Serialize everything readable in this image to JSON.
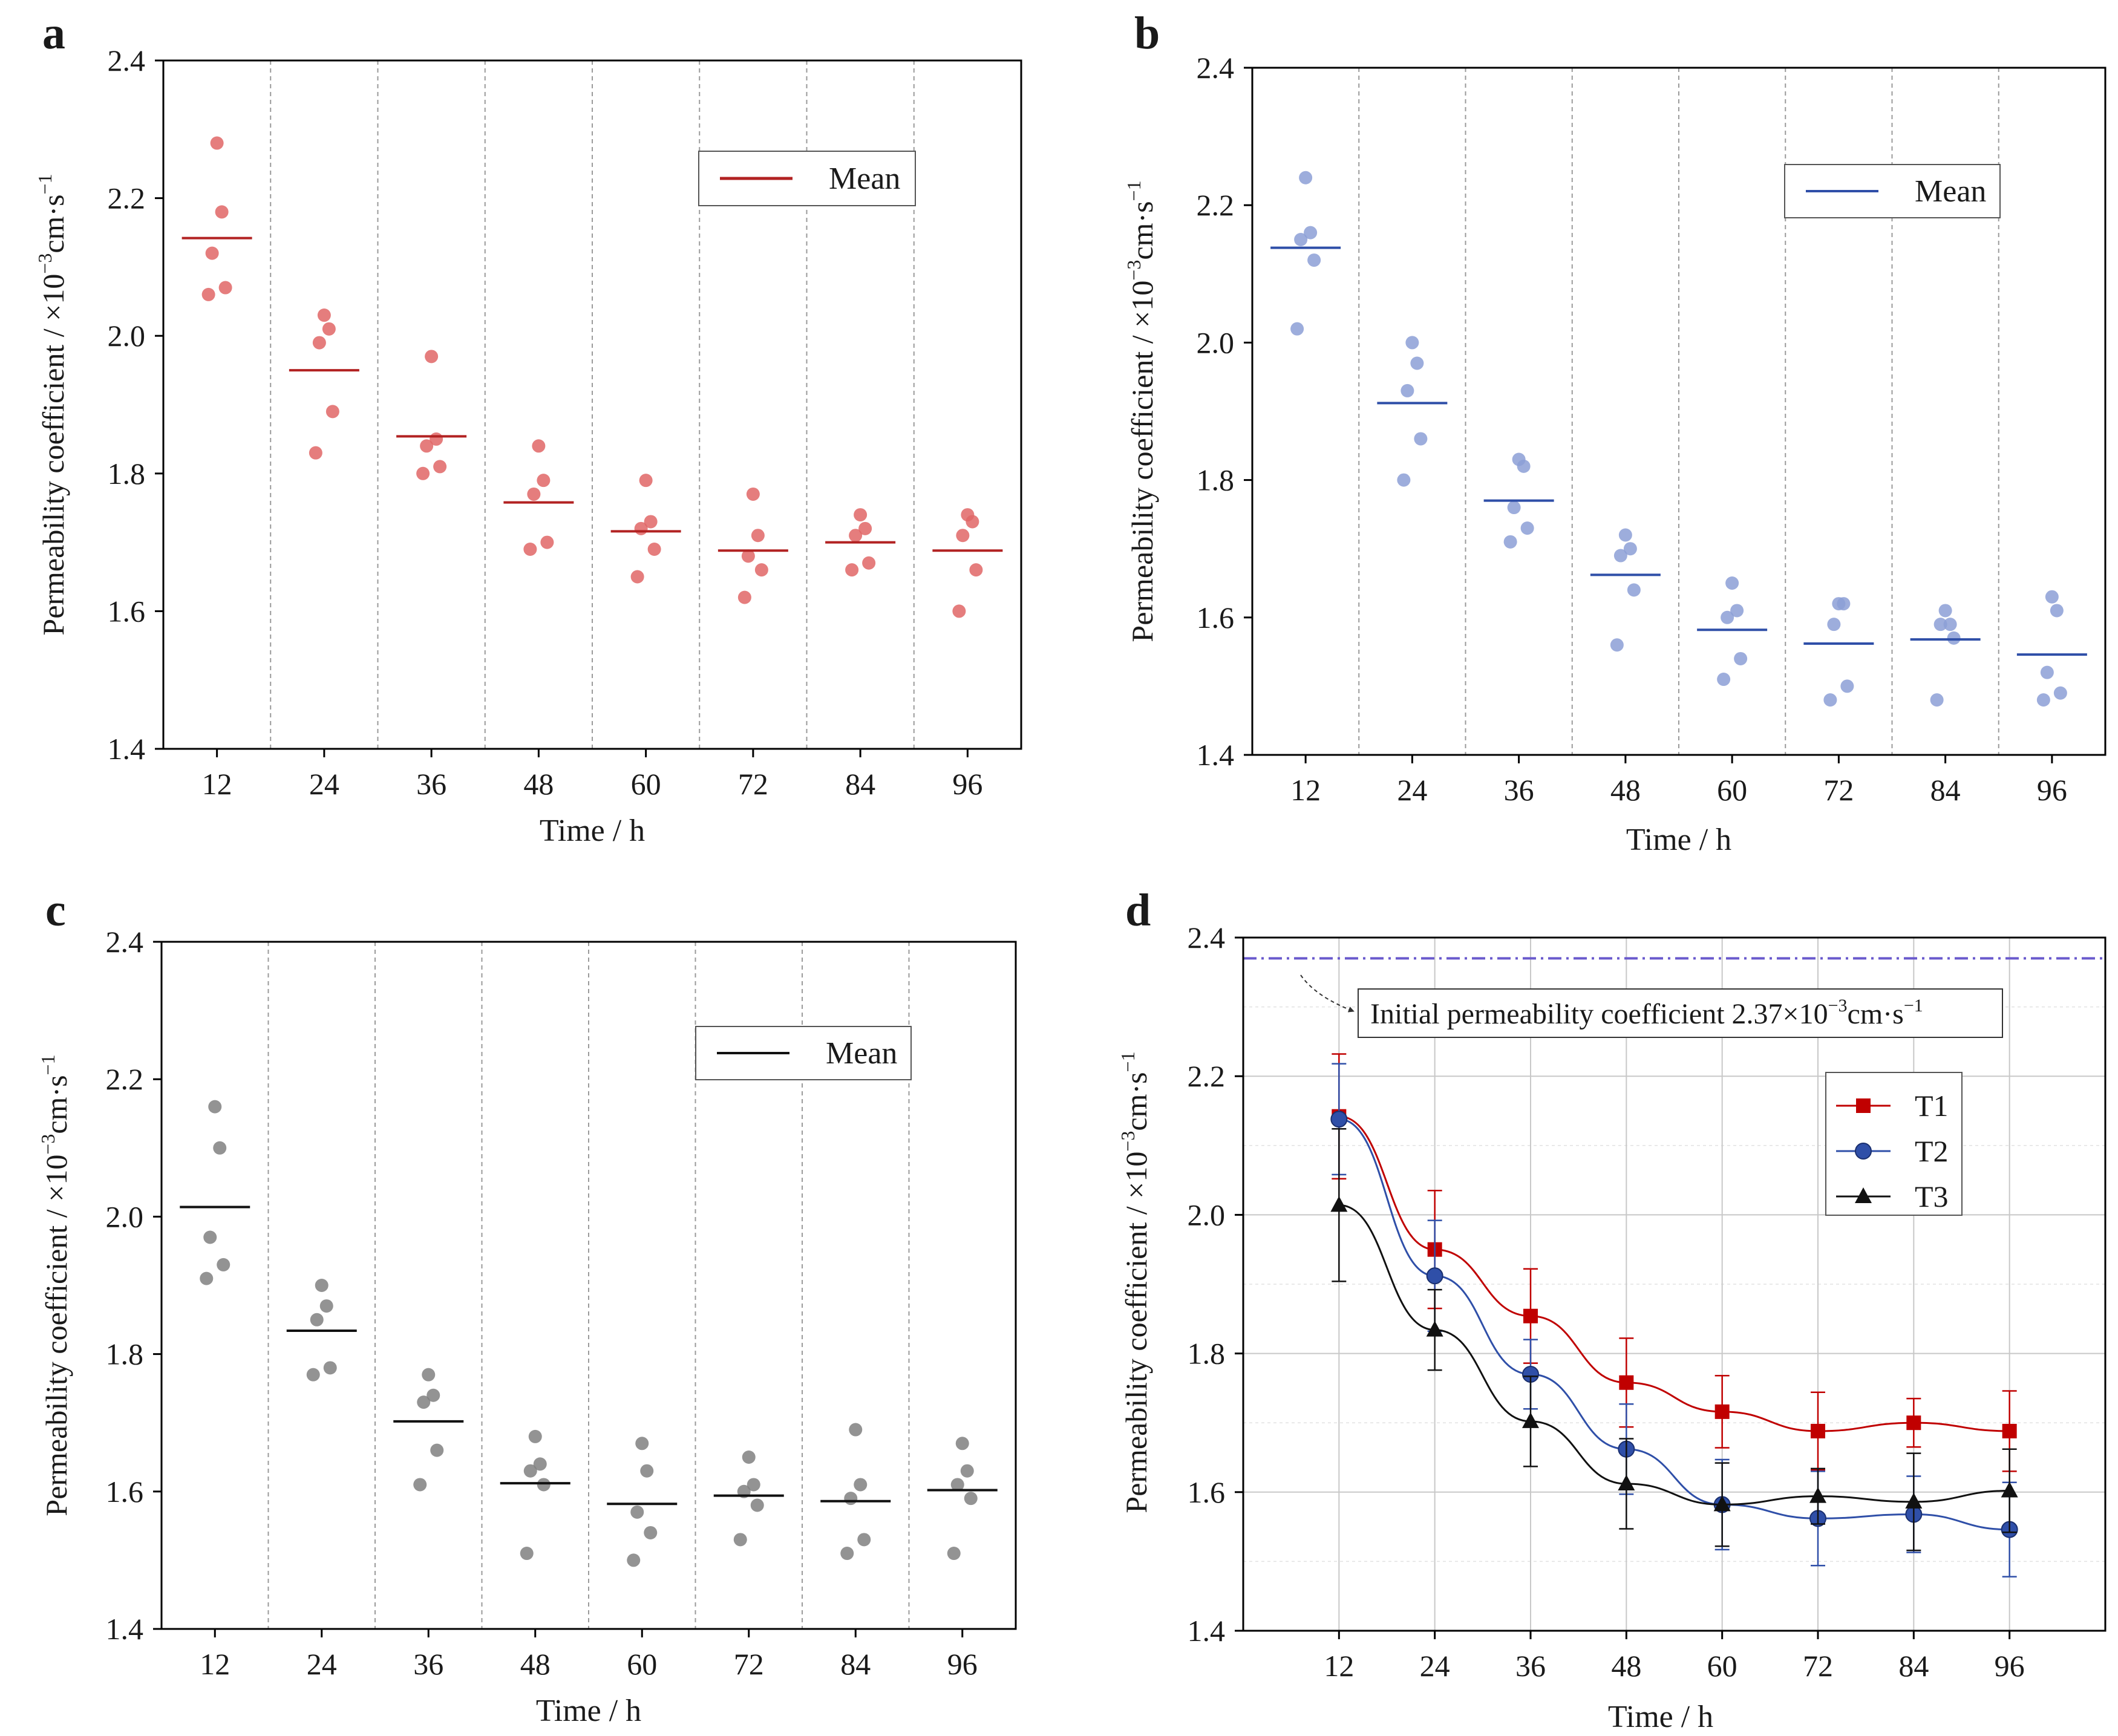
{
  "figure": {
    "panels": [
      {
        "letter": "a",
        "ylabel_main": "Permeability coefficient / ×10",
        "ylabel_exp": "−3",
        "ylabel_unit": "cm·s",
        "ylabel_unit_exp": "−1",
        "xlabel": "Time / h",
        "legend_label": "Mean"
      },
      {
        "letter": "b",
        "ylabel_main": "Permeability coefficient / ×10",
        "ylabel_exp": "−3",
        "ylabel_unit": "cm·s",
        "ylabel_unit_exp": "−1",
        "xlabel": "Time / h",
        "legend_label": "Mean"
      },
      {
        "letter": "c",
        "ylabel_main": "Permeability coefficient / ×10",
        "ylabel_exp": "−3",
        "ylabel_unit": "cm·s",
        "ylabel_unit_exp": "−1",
        "xlabel": "Time / h",
        "legend_label": "Mean"
      },
      {
        "letter": "d",
        "ylabel_main": "Permeability coefficient / ×10",
        "ylabel_exp": "−3",
        "ylabel_unit": "cm·s",
        "ylabel_unit_exp": "−1",
        "xlabel": "Time / h"
      }
    ],
    "annotation_d": {
      "text": "Initial permeability coefficient  2.37×10",
      "exp": "−3",
      "unit": "cm·s",
      "unit_exp": "−1"
    }
  },
  "chart_data": [
    {
      "type": "scatter",
      "panel": "a",
      "x": [
        "12",
        "24",
        "36",
        "48",
        "60",
        "72",
        "84",
        "96"
      ],
      "yticks": [
        "1.4",
        "1.6",
        "1.8",
        "2.0",
        "2.2",
        "2.4"
      ],
      "ylim": [
        1.4,
        2.4
      ],
      "color": "#e06666",
      "mean_color": "#b22222",
      "points": [
        [
          2.28,
          2.18,
          2.12,
          2.07,
          2.06
        ],
        [
          2.03,
          2.01,
          1.99,
          1.89,
          1.83
        ],
        [
          1.97,
          1.85,
          1.84,
          1.81,
          1.8
        ],
        [
          1.84,
          1.79,
          1.77,
          1.7,
          1.69
        ],
        [
          1.79,
          1.73,
          1.72,
          1.69,
          1.65
        ],
        [
          1.77,
          1.71,
          1.68,
          1.66,
          1.62
        ],
        [
          1.74,
          1.72,
          1.71,
          1.67,
          1.66
        ],
        [
          1.74,
          1.73,
          1.71,
          1.66,
          1.6
        ]
      ],
      "means": [
        2.142,
        1.95,
        1.854,
        1.758,
        1.716,
        1.688,
        1.7,
        1.688
      ]
    },
    {
      "type": "scatter",
      "panel": "b",
      "x": [
        "12",
        "24",
        "36",
        "48",
        "60",
        "72",
        "84",
        "96"
      ],
      "yticks": [
        "1.4",
        "1.6",
        "1.8",
        "2.0",
        "2.2",
        "2.4"
      ],
      "ylim": [
        1.4,
        2.4
      ],
      "color": "#8c9fd6",
      "mean_color": "#2f4fa8",
      "points": [
        [
          2.24,
          2.16,
          2.15,
          2.12,
          2.02
        ],
        [
          2.0,
          1.97,
          1.93,
          1.86,
          1.8
        ],
        [
          1.83,
          1.82,
          1.76,
          1.73,
          1.71
        ],
        [
          1.72,
          1.7,
          1.69,
          1.64,
          1.56
        ],
        [
          1.65,
          1.61,
          1.6,
          1.54,
          1.51
        ],
        [
          1.62,
          1.62,
          1.59,
          1.5,
          1.48
        ],
        [
          1.61,
          1.59,
          1.59,
          1.57,
          1.48
        ],
        [
          1.63,
          1.61,
          1.52,
          1.49,
          1.48
        ]
      ],
      "means": [
        2.138,
        1.912,
        1.77,
        1.662,
        1.582,
        1.562,
        1.568,
        1.546
      ]
    },
    {
      "type": "scatter",
      "panel": "c",
      "x": [
        "12",
        "24",
        "36",
        "48",
        "60",
        "72",
        "84",
        "96"
      ],
      "yticks": [
        "1.4",
        "1.6",
        "1.8",
        "2.0",
        "2.2",
        "2.4"
      ],
      "ylim": [
        1.4,
        2.4
      ],
      "color": "#808080",
      "mean_color": "#111111",
      "points": [
        [
          2.16,
          2.1,
          1.97,
          1.93,
          1.91
        ],
        [
          1.9,
          1.87,
          1.85,
          1.78,
          1.77
        ],
        [
          1.77,
          1.74,
          1.73,
          1.66,
          1.61
        ],
        [
          1.68,
          1.64,
          1.63,
          1.61,
          1.51
        ],
        [
          1.67,
          1.63,
          1.57,
          1.54,
          1.5
        ],
        [
          1.65,
          1.61,
          1.6,
          1.58,
          1.53
        ],
        [
          1.69,
          1.61,
          1.59,
          1.53,
          1.51
        ],
        [
          1.67,
          1.63,
          1.61,
          1.59,
          1.51
        ]
      ],
      "means": [
        2.014,
        1.834,
        1.702,
        1.612,
        1.582,
        1.594,
        1.586,
        1.602
      ]
    },
    {
      "type": "line",
      "panel": "d",
      "x": [
        "12",
        "24",
        "36",
        "48",
        "60",
        "72",
        "84",
        "96"
      ],
      "yticks": [
        "1.4",
        "1.6",
        "1.8",
        "2.0",
        "2.2",
        "2.4"
      ],
      "ylim": [
        1.4,
        2.4
      ],
      "reference_line": 2.37,
      "reference_color": "#6a5acd",
      "series": [
        {
          "name": "T1",
          "color": "#c00000",
          "marker": "square",
          "values": [
            2.142,
            1.95,
            1.854,
            1.758,
            1.716,
            1.688,
            1.7,
            1.688
          ],
          "errors": [
            0.09,
            0.085,
            0.068,
            0.064,
            0.052,
            0.056,
            0.035,
            0.058
          ]
        },
        {
          "name": "T2",
          "color": "#2f4fa8",
          "marker": "circle",
          "values": [
            2.138,
            1.912,
            1.77,
            1.662,
            1.582,
            1.562,
            1.568,
            1.546
          ],
          "errors": [
            0.08,
            0.08,
            0.05,
            0.065,
            0.065,
            0.068,
            0.055,
            0.068
          ]
        },
        {
          "name": "T3",
          "color": "#111111",
          "marker": "triangle",
          "values": [
            2.014,
            1.834,
            1.702,
            1.612,
            1.582,
            1.594,
            1.586,
            1.602
          ],
          "errors": [
            0.11,
            0.058,
            0.065,
            0.065,
            0.06,
            0.04,
            0.07,
            0.06
          ]
        }
      ]
    }
  ]
}
